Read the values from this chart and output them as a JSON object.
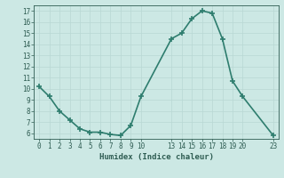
{
  "x": [
    0,
    1,
    2,
    3,
    4,
    5,
    6,
    7,
    8,
    9,
    10,
    13,
    14,
    15,
    16,
    17,
    18,
    19,
    20,
    23
  ],
  "y": [
    10.2,
    9.3,
    8.0,
    7.2,
    6.4,
    6.1,
    6.1,
    5.9,
    5.8,
    6.7,
    9.3,
    14.5,
    15.0,
    16.3,
    17.0,
    16.8,
    14.5,
    10.7,
    9.3,
    5.8
  ],
  "xticks": [
    0,
    1,
    2,
    3,
    4,
    5,
    6,
    7,
    8,
    9,
    10,
    13,
    14,
    15,
    16,
    17,
    18,
    19,
    20,
    23
  ],
  "yticks": [
    6,
    7,
    8,
    9,
    10,
    11,
    12,
    13,
    14,
    15,
    16,
    17
  ],
  "xlabel": "Humidex (Indice chaleur)",
  "xlim": [
    -0.5,
    23.5
  ],
  "ylim": [
    5.5,
    17.5
  ],
  "line_color": "#2e7d6e",
  "bg_color": "#cce8e4",
  "grid_color": "#b8d8d4",
  "tick_color": "#2e5c52",
  "label_color": "#2e5c52",
  "marker": "+",
  "linewidth": 1.2,
  "markersize": 4,
  "tick_fontsize": 5.5,
  "label_fontsize": 6.5
}
